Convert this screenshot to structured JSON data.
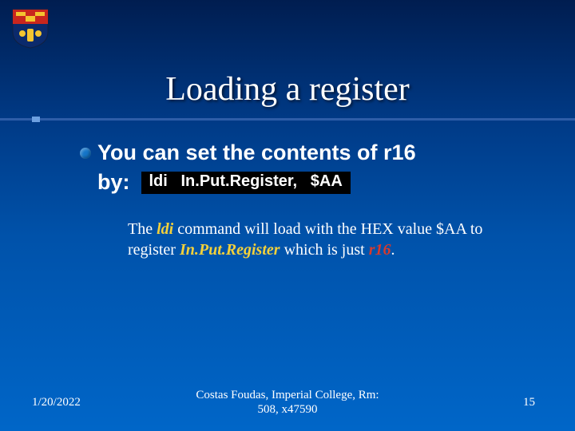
{
  "crest": {
    "shield_bg_top": "#c9261e",
    "shield_bg_bottom": "#0b2a6c",
    "gold": "#f4c430",
    "outline": "#102040"
  },
  "title": "Loading a register",
  "title_fontsize": 42,
  "title_color": "#ffffff",
  "divider": {
    "line_color": "#2e5da8",
    "cap_color": "#6da0e0"
  },
  "bullet": {
    "dot_color": "#1575c8",
    "line1": "You can set the contents of r16",
    "line2_prefix": "by:",
    "text_color": "#ffffff",
    "font_size": 27,
    "font_weight": "700",
    "font_family": "Arial"
  },
  "code": {
    "text": "ldi   In.Put.Register,   $AA",
    "bg": "#000000",
    "color": "#ffffff",
    "font_size": 20,
    "font_weight": "700"
  },
  "explain": {
    "parts": [
      {
        "t": "The ",
        "style": "plain"
      },
      {
        "t": "ldi",
        "style": "bolditalic-yellow"
      },
      {
        "t": " command will load with the HEX value $AA to register ",
        "style": "plain"
      },
      {
        "t": "In.Put.Register",
        "style": "bolditalic-yellow"
      },
      {
        "t": "  which is just ",
        "style": "plain"
      },
      {
        "t": "r16",
        "style": "bolditalic-red"
      },
      {
        "t": ".",
        "style": "plain"
      }
    ],
    "font_size": 20,
    "yellow": "#f4d13a",
    "red": "#d63a2e",
    "plain_color": "#ffffff"
  },
  "footer": {
    "date": "1/20/2022",
    "center_l1": "Costas Foudas, Imperial College, Rm:",
    "center_l2": "508, x47590",
    "page": "15",
    "font_size": 15,
    "color": "#ffffff"
  },
  "background": {
    "gradient_top": "#001d50",
    "gradient_mid1": "#003a86",
    "gradient_mid2": "#0052aa",
    "gradient_bottom": "#0066c8"
  }
}
